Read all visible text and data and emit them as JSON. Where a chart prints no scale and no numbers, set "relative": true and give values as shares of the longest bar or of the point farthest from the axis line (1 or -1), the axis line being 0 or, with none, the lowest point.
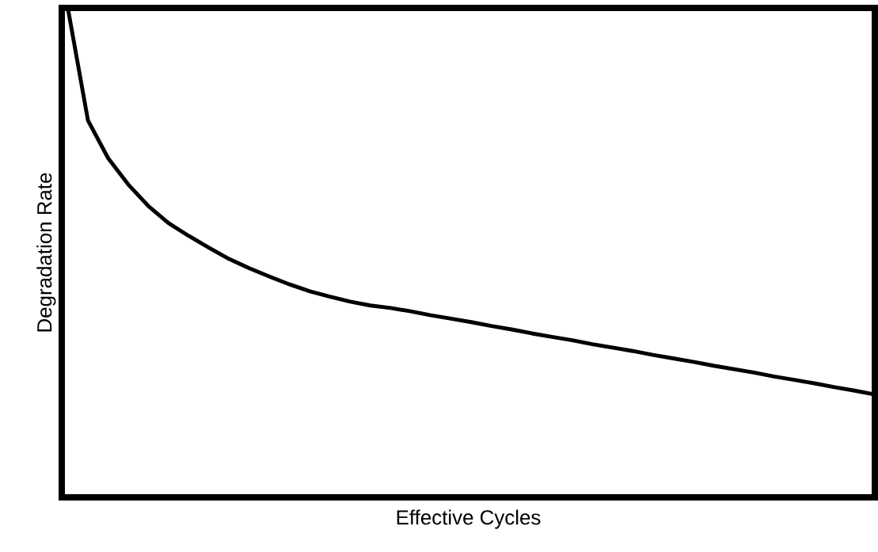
{
  "chart_data": {
    "type": "line",
    "xlabel": "Effective Cycles",
    "ylabel": "Degradation Rate",
    "relative": true,
    "tick_labels": false,
    "categories": [
      null,
      null,
      null,
      null,
      null,
      null,
      null,
      null,
      null,
      null,
      null,
      null,
      null,
      null,
      null,
      null,
      null,
      null,
      null,
      null,
      null,
      null,
      null,
      null,
      null,
      null,
      null,
      null,
      null,
      null,
      null,
      null,
      null,
      null,
      null,
      null,
      null,
      null,
      null,
      null,
      null
    ],
    "series": [
      {
        "color": "#000000",
        "values": [
          1.0,
          0.77,
          0.693,
          0.639,
          0.595,
          0.56,
          0.534,
          0.51,
          0.487,
          0.468,
          0.451,
          0.435,
          0.421,
          0.41,
          0.4,
          0.392,
          0.387,
          0.38,
          0.372,
          0.365,
          0.358,
          0.35,
          0.343,
          0.335,
          0.328,
          0.321,
          0.313,
          0.306,
          0.299,
          0.291,
          0.284,
          0.277,
          0.269,
          0.262,
          0.255,
          0.247,
          0.24,
          0.233,
          0.225,
          0.218,
          0.21
        ]
      }
    ]
  }
}
